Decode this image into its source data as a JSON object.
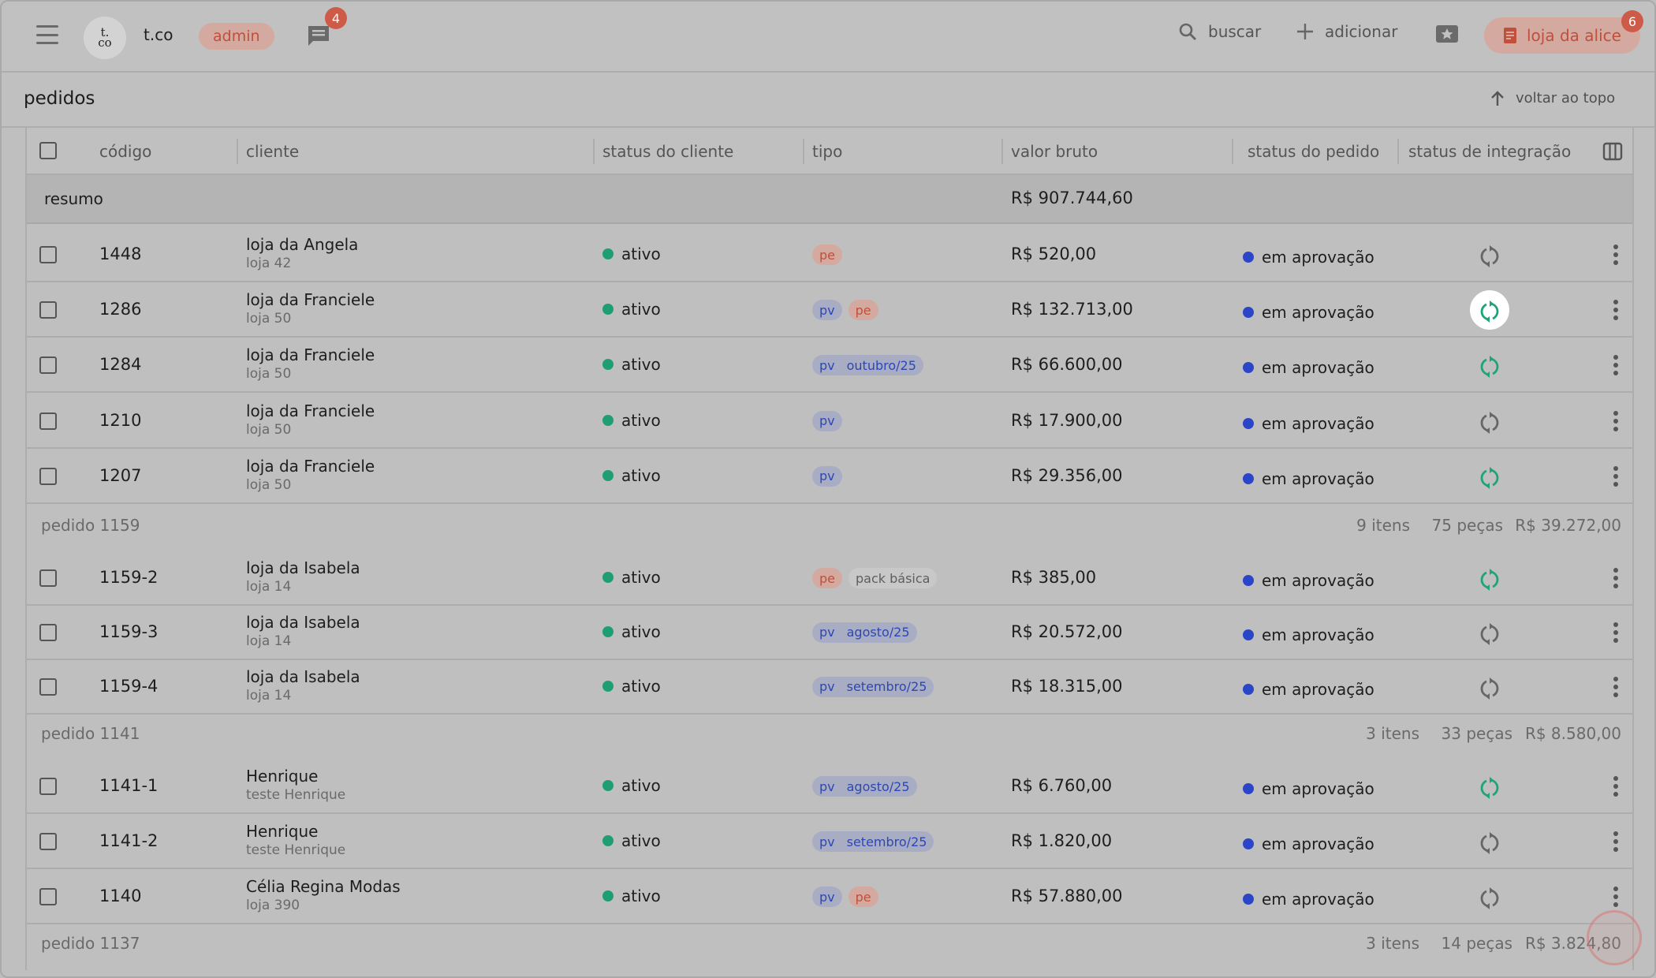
{
  "topbar": {
    "logo_line1": "t.",
    "logo_line2": "co",
    "brand": "t.co",
    "role_badge": "admin",
    "chat_count": "4",
    "search_label": "buscar",
    "add_label": "adicionar",
    "store_label": "loja da alice",
    "store_count": "6"
  },
  "page": {
    "title": "pedidos",
    "back_to_top": "voltar ao topo"
  },
  "table": {
    "columns": [
      "código",
      "cliente",
      "status do cliente",
      "tipo",
      "valor bruto",
      "status do pedido",
      "status de integração"
    ],
    "summary_label": "resumo",
    "summary_value": "R$ 907.744,60",
    "rows": [
      {
        "code": "1448",
        "client": "loja da Angela",
        "sub": "loja 42",
        "status": "ativo",
        "tags": [
          "pe"
        ],
        "value": "R$ 520,00",
        "order_status": "em aprovação",
        "sync": "gray"
      },
      {
        "code": "1286",
        "client": "loja da Franciele",
        "sub": "loja 50",
        "status": "ativo",
        "tags": [
          "pv",
          "pe"
        ],
        "value": "R$ 132.713,00",
        "order_status": "em aprovação",
        "sync": "green-highlight"
      },
      {
        "code": "1284",
        "client": "loja da Franciele",
        "sub": "loja 50",
        "status": "ativo",
        "tags": [
          "pv",
          "outubro/25"
        ],
        "value": "R$ 66.600,00",
        "order_status": "em aprovação",
        "sync": "green"
      },
      {
        "code": "1210",
        "client": "loja da Franciele",
        "sub": "loja 50",
        "status": "ativo",
        "tags": [
          "pv"
        ],
        "value": "R$ 17.900,00",
        "order_status": "em aprovação",
        "sync": "gray"
      },
      {
        "code": "1207",
        "client": "loja da Franciele",
        "sub": "loja 50",
        "status": "ativo",
        "tags": [
          "pv"
        ],
        "value": "R$ 29.356,00",
        "order_status": "em aprovação",
        "sync": "green"
      }
    ],
    "group1": {
      "title": "pedido 1159",
      "items": "9 itens",
      "pieces": "75 peças",
      "total": "R$ 39.272,00"
    },
    "group1_rows": [
      {
        "code": "1159-2",
        "client": "loja da Isabela",
        "sub": "loja 14",
        "status": "ativo",
        "tags": [
          "pe",
          "pack básica"
        ],
        "value": "R$ 385,00",
        "order_status": "em aprovação",
        "sync": "green"
      },
      {
        "code": "1159-3",
        "client": "loja da Isabela",
        "sub": "loja 14",
        "status": "ativo",
        "tags": [
          "pv",
          "agosto/25"
        ],
        "value": "R$ 20.572,00",
        "order_status": "em aprovação",
        "sync": "gray"
      },
      {
        "code": "1159-4",
        "client": "loja da Isabela",
        "sub": "loja 14",
        "status": "ativo",
        "tags": [
          "pv",
          "setembro/25"
        ],
        "value": "R$ 18.315,00",
        "order_status": "em aprovação",
        "sync": "gray"
      }
    ],
    "group2": {
      "title": "pedido 1141",
      "items": "3 itens",
      "pieces": "33 peças",
      "total": "R$ 8.580,00"
    },
    "group2_rows": [
      {
        "code": "1141-1",
        "client": "Henrique",
        "sub": "teste Henrique",
        "status": "ativo",
        "tags": [
          "pv",
          "agosto/25"
        ],
        "value": "R$ 6.760,00",
        "order_status": "em aprovação",
        "sync": "green"
      },
      {
        "code": "1141-2",
        "client": "Henrique",
        "sub": "teste Henrique",
        "status": "ativo",
        "tags": [
          "pv",
          "setembro/25"
        ],
        "value": "R$ 1.820,00",
        "order_status": "em aprovação",
        "sync": "gray"
      },
      {
        "code": "1140",
        "client": "Célia Regina Modas",
        "sub": "loja 390",
        "status": "ativo",
        "tags": [
          "pv",
          "pe"
        ],
        "value": "R$ 57.880,00",
        "order_status": "em aprovação",
        "sync": "gray"
      }
    ],
    "group3": {
      "title": "pedido 1137",
      "items": "3 itens",
      "pieces": "14 peças",
      "total": "R$ 3.824,80"
    }
  },
  "colors": {
    "accent": "#c0503c",
    "active_green": "#1f9e73",
    "status_blue": "#2a45c8",
    "sync_green": "#1fa37a"
  },
  "icons": [
    "menu-icon",
    "chat-icon",
    "search-icon",
    "plus-icon",
    "award-icon",
    "document-icon",
    "arrow-up-icon",
    "columns-icon",
    "sync-icon",
    "kebab-icon"
  ]
}
